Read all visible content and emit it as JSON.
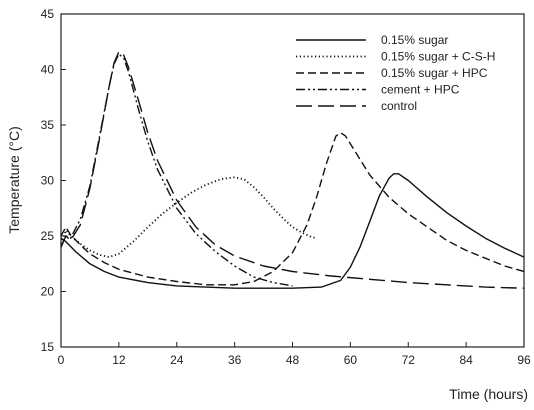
{
  "chart_data": {
    "type": "line",
    "title": "",
    "xlabel": "Time (hours)",
    "ylabel": "Temperature (°C)",
    "xlim": [
      0,
      96
    ],
    "ylim": [
      15,
      45
    ],
    "xticks": [
      0,
      12,
      24,
      36,
      48,
      60,
      72,
      84,
      96
    ],
    "yticks": [
      15,
      20,
      25,
      30,
      35,
      40,
      45
    ],
    "grid": false,
    "legend_position": "top-right",
    "series": [
      {
        "name": "0.15% sugar",
        "style": "solid",
        "points": [
          [
            0,
            24.8
          ],
          [
            1,
            24.5
          ],
          [
            3,
            23.6
          ],
          [
            6,
            22.5
          ],
          [
            9,
            21.8
          ],
          [
            12,
            21.3
          ],
          [
            18,
            20.8
          ],
          [
            24,
            20.5
          ],
          [
            30,
            20.4
          ],
          [
            36,
            20.3
          ],
          [
            42,
            20.3
          ],
          [
            48,
            20.3
          ],
          [
            54,
            20.4
          ],
          [
            58,
            21.0
          ],
          [
            60,
            22.2
          ],
          [
            62,
            24.0
          ],
          [
            64,
            26.3
          ],
          [
            66,
            28.6
          ],
          [
            68,
            30.2
          ],
          [
            69,
            30.6
          ],
          [
            70,
            30.6
          ],
          [
            72,
            30.0
          ],
          [
            76,
            28.5
          ],
          [
            80,
            27.1
          ],
          [
            84,
            25.9
          ],
          [
            88,
            24.8
          ],
          [
            92,
            23.9
          ],
          [
            96,
            23.1
          ]
        ]
      },
      {
        "name": "0.15% sugar + C-S-H",
        "style": "dotted",
        "points": [
          [
            0,
            24.3
          ],
          [
            1,
            25.5
          ],
          [
            2,
            25.0
          ],
          [
            4,
            24.3
          ],
          [
            6,
            23.7
          ],
          [
            8,
            23.3
          ],
          [
            10,
            23.1
          ],
          [
            12,
            23.4
          ],
          [
            15,
            24.5
          ],
          [
            18,
            25.8
          ],
          [
            21,
            27.0
          ],
          [
            24,
            28.0
          ],
          [
            27,
            28.9
          ],
          [
            30,
            29.6
          ],
          [
            33,
            30.1
          ],
          [
            36,
            30.3
          ],
          [
            38,
            30.1
          ],
          [
            40,
            29.4
          ],
          [
            42,
            28.5
          ],
          [
            44,
            27.5
          ],
          [
            46,
            26.6
          ],
          [
            48,
            25.8
          ],
          [
            50,
            25.3
          ],
          [
            52,
            24.9
          ],
          [
            53,
            24.8
          ]
        ]
      },
      {
        "name": "0.15% sugar + HPC",
        "style": "dashed",
        "points": [
          [
            0,
            25.0
          ],
          [
            1,
            25.8
          ],
          [
            2,
            25.1
          ],
          [
            4,
            24.2
          ],
          [
            6,
            23.4
          ],
          [
            9,
            22.6
          ],
          [
            12,
            22.0
          ],
          [
            18,
            21.3
          ],
          [
            24,
            20.9
          ],
          [
            30,
            20.6
          ],
          [
            36,
            20.6
          ],
          [
            40,
            20.9
          ],
          [
            44,
            21.8
          ],
          [
            48,
            23.5
          ],
          [
            51,
            26.0
          ],
          [
            53,
            28.5
          ],
          [
            55,
            31.5
          ],
          [
            57,
            34.0
          ],
          [
            58,
            34.3
          ],
          [
            59,
            34.0
          ],
          [
            61,
            32.6
          ],
          [
            64,
            30.5
          ],
          [
            68,
            28.5
          ],
          [
            72,
            27.0
          ],
          [
            76,
            25.8
          ],
          [
            80,
            24.6
          ],
          [
            84,
            23.7
          ],
          [
            88,
            23.0
          ],
          [
            92,
            22.3
          ],
          [
            96,
            21.8
          ]
        ]
      },
      {
        "name": "cement + HPC",
        "style": "dashdot",
        "points": [
          [
            0,
            24.0
          ],
          [
            1,
            25.0
          ],
          [
            2,
            24.8
          ],
          [
            4,
            26.5
          ],
          [
            6,
            29.5
          ],
          [
            8,
            34.0
          ],
          [
            10,
            38.5
          ],
          [
            11,
            40.5
          ],
          [
            12,
            41.4
          ],
          [
            13,
            41.0
          ],
          [
            14,
            39.8
          ],
          [
            16,
            36.5
          ],
          [
            18,
            33.5
          ],
          [
            20,
            31.0
          ],
          [
            24,
            27.5
          ],
          [
            28,
            25.2
          ],
          [
            32,
            23.6
          ],
          [
            36,
            22.3
          ],
          [
            40,
            21.3
          ],
          [
            44,
            20.8
          ],
          [
            48,
            20.5
          ]
        ]
      },
      {
        "name": "control",
        "style": "longdash",
        "points": [
          [
            0,
            24.0
          ],
          [
            1,
            25.0
          ],
          [
            2,
            24.6
          ],
          [
            4,
            26.0
          ],
          [
            6,
            29.3
          ],
          [
            8,
            33.8
          ],
          [
            10,
            38.5
          ],
          [
            11,
            40.6
          ],
          [
            12,
            41.6
          ],
          [
            13,
            41.3
          ],
          [
            14,
            40.2
          ],
          [
            16,
            37.3
          ],
          [
            18,
            34.3
          ],
          [
            20,
            31.8
          ],
          [
            24,
            28.2
          ],
          [
            28,
            25.8
          ],
          [
            32,
            24.2
          ],
          [
            36,
            23.2
          ],
          [
            42,
            22.3
          ],
          [
            48,
            21.8
          ],
          [
            56,
            21.4
          ],
          [
            64,
            21.1
          ],
          [
            72,
            20.8
          ],
          [
            80,
            20.6
          ],
          [
            88,
            20.4
          ],
          [
            96,
            20.3
          ]
        ]
      }
    ]
  }
}
